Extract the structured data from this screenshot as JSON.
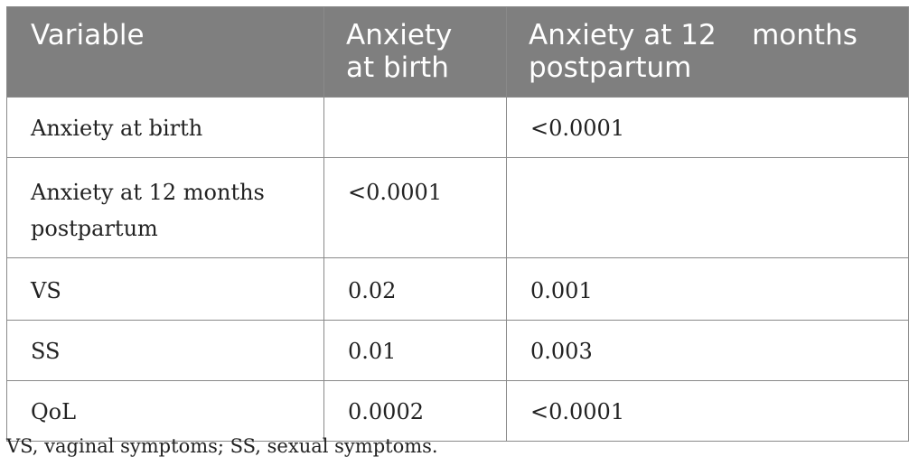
{
  "table": {
    "headers": [
      "Variable",
      "Anxiety at birth",
      "Anxiety at 12    months postpartum"
    ],
    "rows": [
      [
        "Anxiety at birth",
        "",
        "<0.0001"
      ],
      [
        "Anxiety at 12 months postpartum",
        "<0.0001",
        ""
      ],
      [
        "VS",
        "0.02",
        "0.001"
      ],
      [
        "SS",
        "0.01",
        "0.003"
      ],
      [
        "QoL",
        "0.0002",
        "<0.0001"
      ]
    ]
  },
  "footnote": "VS, vaginal symptoms; SS, sexual symptoms.",
  "colors": {
    "header_bg": "#7f7f7f",
    "header_text": "#ffffff",
    "border": "#8a8a8a",
    "body_text": "#222222"
  }
}
